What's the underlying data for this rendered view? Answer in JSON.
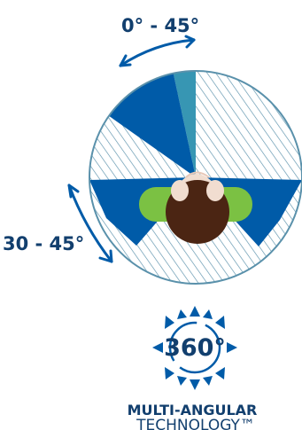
{
  "labels": {
    "top_range": "0° - 45°",
    "left_range": "30 - 45°"
  },
  "badge": {
    "center_text": "360°",
    "title": "MULTI-ANGULAR",
    "subtitle": "TECHNOLOGY™"
  },
  "colors": {
    "deep_blue": "#005ba8",
    "teal_blue": "#3796b3",
    "stripe_blue": "#5a91ab",
    "navy": "#123f6e",
    "green": "#7bc143",
    "hair": "#4b2513",
    "skin": "#f1ddd0"
  },
  "icons": {
    "top_arrow": "curved-double-arrow-icon",
    "left_arrow": "curved-double-arrow-icon",
    "badge_arrows": "arrows-circle-icon"
  }
}
